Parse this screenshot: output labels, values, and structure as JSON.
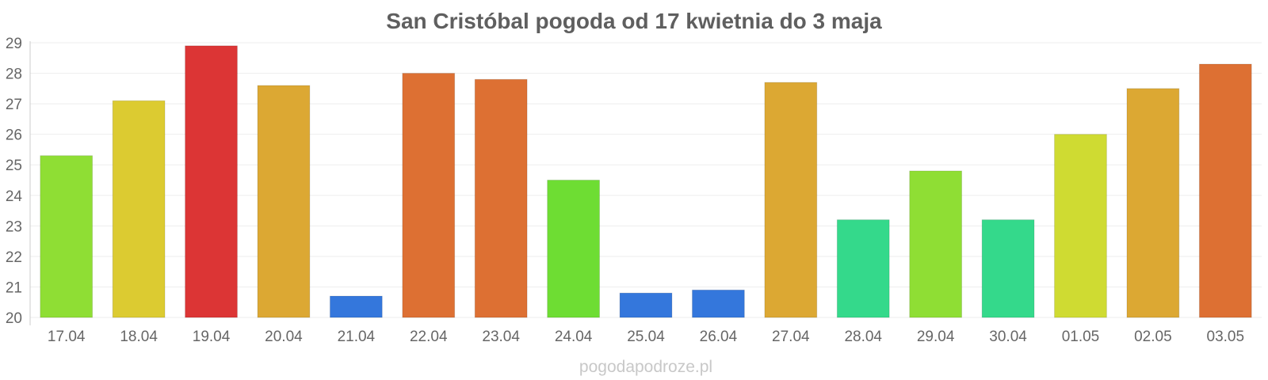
{
  "chart_data": {
    "type": "bar",
    "title": "San Cristóbal pogoda od 17 kwietnia do 3 maja",
    "categories": [
      "17.04",
      "18.04",
      "19.04",
      "20.04",
      "21.04",
      "22.04",
      "23.04",
      "24.04",
      "25.04",
      "26.04",
      "27.04",
      "28.04",
      "29.04",
      "30.04",
      "01.05",
      "02.05",
      "03.05"
    ],
    "values": [
      25.3,
      27.1,
      28.9,
      27.6,
      20.7,
      28.0,
      27.8,
      24.5,
      20.8,
      20.9,
      27.7,
      23.2,
      24.8,
      23.2,
      26.0,
      27.5,
      28.3
    ],
    "colors": [
      "#8fde34",
      "#dccb31",
      "#dc3535",
      "#dca833",
      "#3477dc",
      "#dd7033",
      "#dd7033",
      "#6edd33",
      "#3477dc",
      "#3477dc",
      "#dca833",
      "#34d98b",
      "#8fde34",
      "#34d98b",
      "#cfdb32",
      "#dca833",
      "#dd7033"
    ],
    "ylim": [
      20,
      29
    ],
    "yticks": [
      20,
      21,
      22,
      23,
      24,
      25,
      26,
      27,
      28,
      29
    ],
    "grid": true,
    "xlabel": "",
    "ylabel": ""
  },
  "watermark": "pogodapodroze.pl"
}
